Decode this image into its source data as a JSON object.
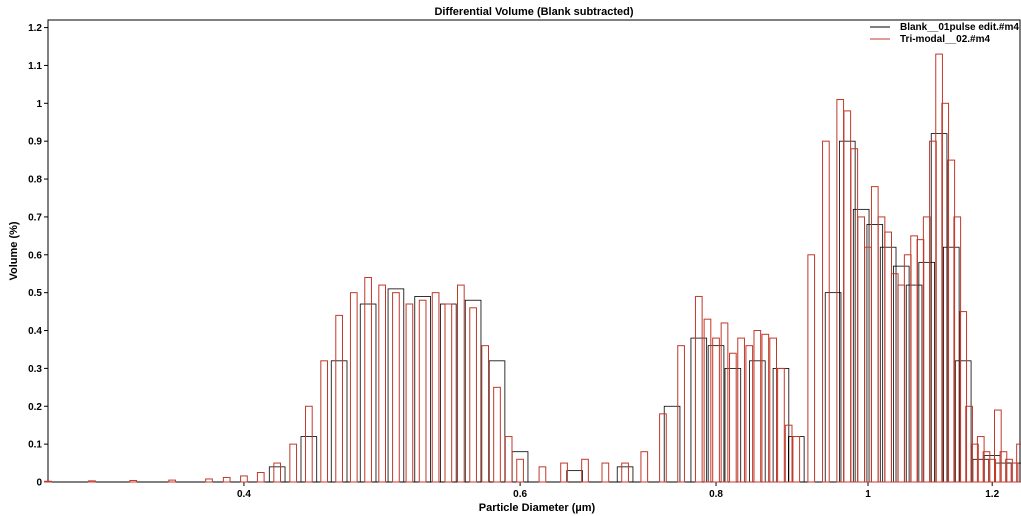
{
  "chart_data": {
    "type": "bar",
    "title": "Differential Volume  (Blank subtracted)",
    "xlabel": "Particle Diameter (µm)",
    "ylabel": "Volume (%)",
    "x_scale": "log",
    "xlim": [
      0.3,
      1.25
    ],
    "ylim": [
      0,
      1.22
    ],
    "x_ticks": [
      "0.4",
      "0.6",
      "0.8",
      "1",
      "1.2"
    ],
    "y_ticks": [
      "0",
      "0.1",
      "0.2",
      "0.3",
      "0.4",
      "0.5",
      "0.6",
      "0.7",
      "0.8",
      "0.9",
      "1",
      "1.1",
      "1.2"
    ],
    "legend_position": "top-right",
    "series": [
      {
        "name": "Blank__01pulse edit.#m4",
        "color": "#000000",
        "x": [
          0.42,
          0.44,
          0.46,
          0.48,
          0.5,
          0.52,
          0.54,
          0.56,
          0.58,
          0.6,
          0.65,
          0.7,
          0.75,
          0.78,
          0.8,
          0.82,
          0.85,
          0.88,
          0.9,
          0.95,
          0.97,
          0.99,
          1.01,
          1.03,
          1.05,
          1.07,
          1.09,
          1.11,
          1.13,
          1.15,
          1.18,
          1.2,
          1.22,
          1.24
        ],
        "values": [
          0.04,
          0.12,
          0.32,
          0.47,
          0.51,
          0.49,
          0.47,
          0.48,
          0.32,
          0.08,
          0.03,
          0.04,
          0.2,
          0.38,
          0.36,
          0.3,
          0.32,
          0.3,
          0.12,
          0.5,
          0.9,
          0.72,
          0.68,
          0.62,
          0.57,
          0.52,
          0.58,
          0.92,
          0.62,
          0.32,
          0.06,
          0.07,
          0.05,
          0.05
        ]
      },
      {
        "name": "Tri-modal__02.#m4",
        "color": "#c0392b",
        "x": [
          0.3,
          0.32,
          0.34,
          0.36,
          0.38,
          0.39,
          0.4,
          0.41,
          0.42,
          0.43,
          0.44,
          0.45,
          0.46,
          0.47,
          0.48,
          0.49,
          0.5,
          0.51,
          0.52,
          0.53,
          0.54,
          0.55,
          0.56,
          0.57,
          0.58,
          0.59,
          0.6,
          0.62,
          0.64,
          0.66,
          0.68,
          0.7,
          0.72,
          0.74,
          0.76,
          0.78,
          0.79,
          0.8,
          0.81,
          0.82,
          0.83,
          0.84,
          0.85,
          0.86,
          0.87,
          0.88,
          0.89,
          0.9,
          0.92,
          0.94,
          0.96,
          0.97,
          0.98,
          0.99,
          1.0,
          1.01,
          1.02,
          1.03,
          1.04,
          1.05,
          1.06,
          1.07,
          1.08,
          1.09,
          1.1,
          1.11,
          1.12,
          1.13,
          1.14,
          1.15,
          1.16,
          1.17,
          1.18,
          1.19,
          1.2,
          1.21,
          1.22,
          1.23,
          1.24,
          1.25
        ],
        "values": [
          0.002,
          0.003,
          0.004,
          0.005,
          0.008,
          0.012,
          0.016,
          0.025,
          0.05,
          0.1,
          0.2,
          0.32,
          0.44,
          0.5,
          0.54,
          0.52,
          0.5,
          0.47,
          0.48,
          0.5,
          0.47,
          0.52,
          0.46,
          0.36,
          0.25,
          0.12,
          0.06,
          0.04,
          0.05,
          0.06,
          0.05,
          0.05,
          0.08,
          0.18,
          0.36,
          0.49,
          0.43,
          0.38,
          0.42,
          0.34,
          0.38,
          0.36,
          0.4,
          0.39,
          0.38,
          0.3,
          0.15,
          0.12,
          0.6,
          0.9,
          1.01,
          0.98,
          0.88,
          0.7,
          0.62,
          0.78,
          0.7,
          0.66,
          0.55,
          0.52,
          0.6,
          0.65,
          0.64,
          0.7,
          0.9,
          1.13,
          1.0,
          0.85,
          0.7,
          0.45,
          0.2,
          0.1,
          0.12,
          0.08,
          0.06,
          0.19,
          0.08,
          0.06,
          0.05,
          0.1
        ]
      }
    ]
  }
}
